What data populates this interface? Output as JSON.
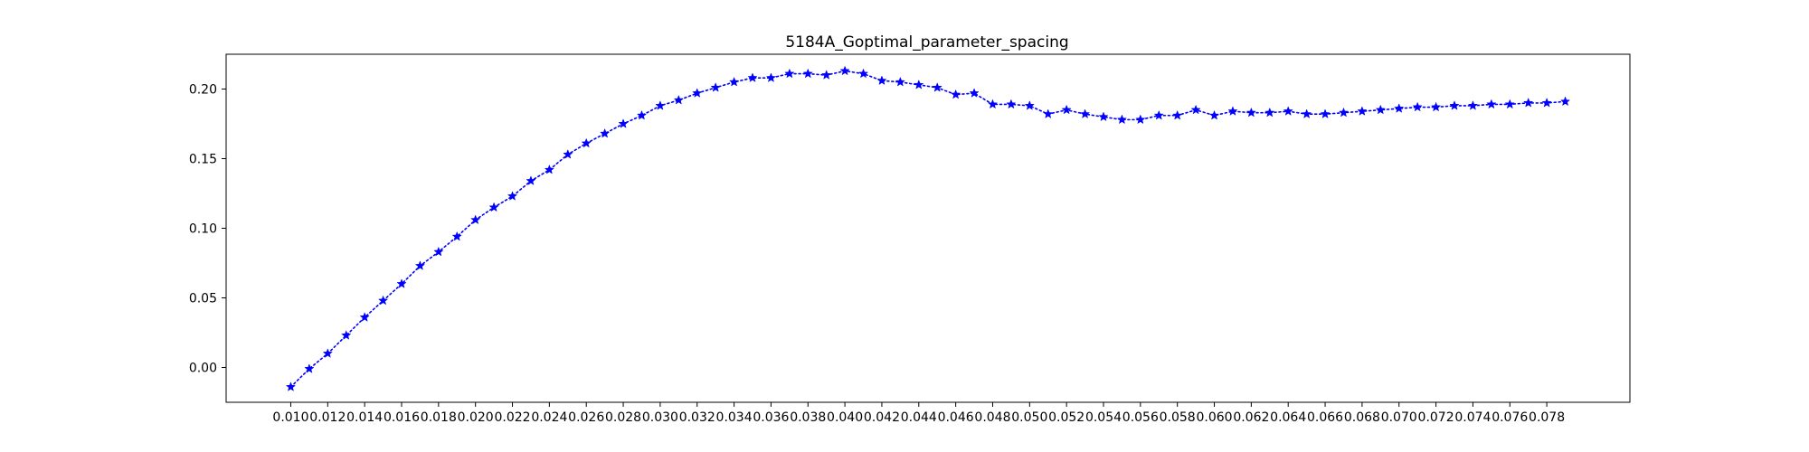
{
  "chart_data": {
    "type": "line",
    "title": "5184A_Goptimal_parameter_spacing",
    "xlabel": "",
    "ylabel": "",
    "grid": false,
    "xlim": [
      0.0065,
      0.0825
    ],
    "ylim": [
      -0.025,
      0.225
    ],
    "x_ticks": [
      "0.010",
      "0.012",
      "0.014",
      "0.016",
      "0.018",
      "0.020",
      "0.022",
      "0.024",
      "0.026",
      "0.028",
      "0.030",
      "0.032",
      "0.034",
      "0.036",
      "0.038",
      "0.040",
      "0.042",
      "0.044",
      "0.046",
      "0.048",
      "0.050",
      "0.052",
      "0.054",
      "0.056",
      "0.058",
      "0.060",
      "0.062",
      "0.064",
      "0.066",
      "0.068",
      "0.070",
      "0.072",
      "0.074",
      "0.076",
      "0.078"
    ],
    "y_ticks": [
      "0.00",
      "0.05",
      "0.10",
      "0.15",
      "0.20"
    ],
    "series": [
      {
        "color": "#0000ff",
        "line_style": "dotted",
        "marker": "star",
        "x": [
          0.01,
          0.011,
          0.012,
          0.013,
          0.014,
          0.015,
          0.016,
          0.017,
          0.018,
          0.019,
          0.02,
          0.021,
          0.022,
          0.023,
          0.024,
          0.025,
          0.026,
          0.027,
          0.028,
          0.029,
          0.03,
          0.031,
          0.032,
          0.033,
          0.034,
          0.035,
          0.036,
          0.037,
          0.038,
          0.039,
          0.04,
          0.041,
          0.042,
          0.043,
          0.044,
          0.045,
          0.046,
          0.047,
          0.048,
          0.049,
          0.05,
          0.051,
          0.052,
          0.053,
          0.054,
          0.055,
          0.056,
          0.057,
          0.058,
          0.059,
          0.06,
          0.061,
          0.062,
          0.063,
          0.064,
          0.065,
          0.066,
          0.067,
          0.068,
          0.069,
          0.07,
          0.071,
          0.072,
          0.073,
          0.074,
          0.075,
          0.076,
          0.077,
          0.078,
          0.079
        ],
        "y": [
          -0.014,
          -0.001,
          0.01,
          0.023,
          0.036,
          0.048,
          0.06,
          0.073,
          0.083,
          0.094,
          0.106,
          0.115,
          0.123,
          0.134,
          0.142,
          0.153,
          0.161,
          0.168,
          0.175,
          0.181,
          0.188,
          0.192,
          0.197,
          0.201,
          0.205,
          0.208,
          0.208,
          0.211,
          0.211,
          0.21,
          0.213,
          0.211,
          0.206,
          0.205,
          0.203,
          0.201,
          0.196,
          0.197,
          0.189,
          0.189,
          0.188,
          0.182,
          0.185,
          0.182,
          0.18,
          0.178,
          0.178,
          0.181,
          0.181,
          0.185,
          0.181,
          0.184,
          0.183,
          0.183,
          0.184,
          0.182,
          0.182,
          0.183,
          0.184,
          0.185,
          0.186,
          0.187,
          0.187,
          0.188,
          0.188,
          0.189,
          0.189,
          0.19,
          0.19,
          0.191
        ]
      }
    ]
  }
}
